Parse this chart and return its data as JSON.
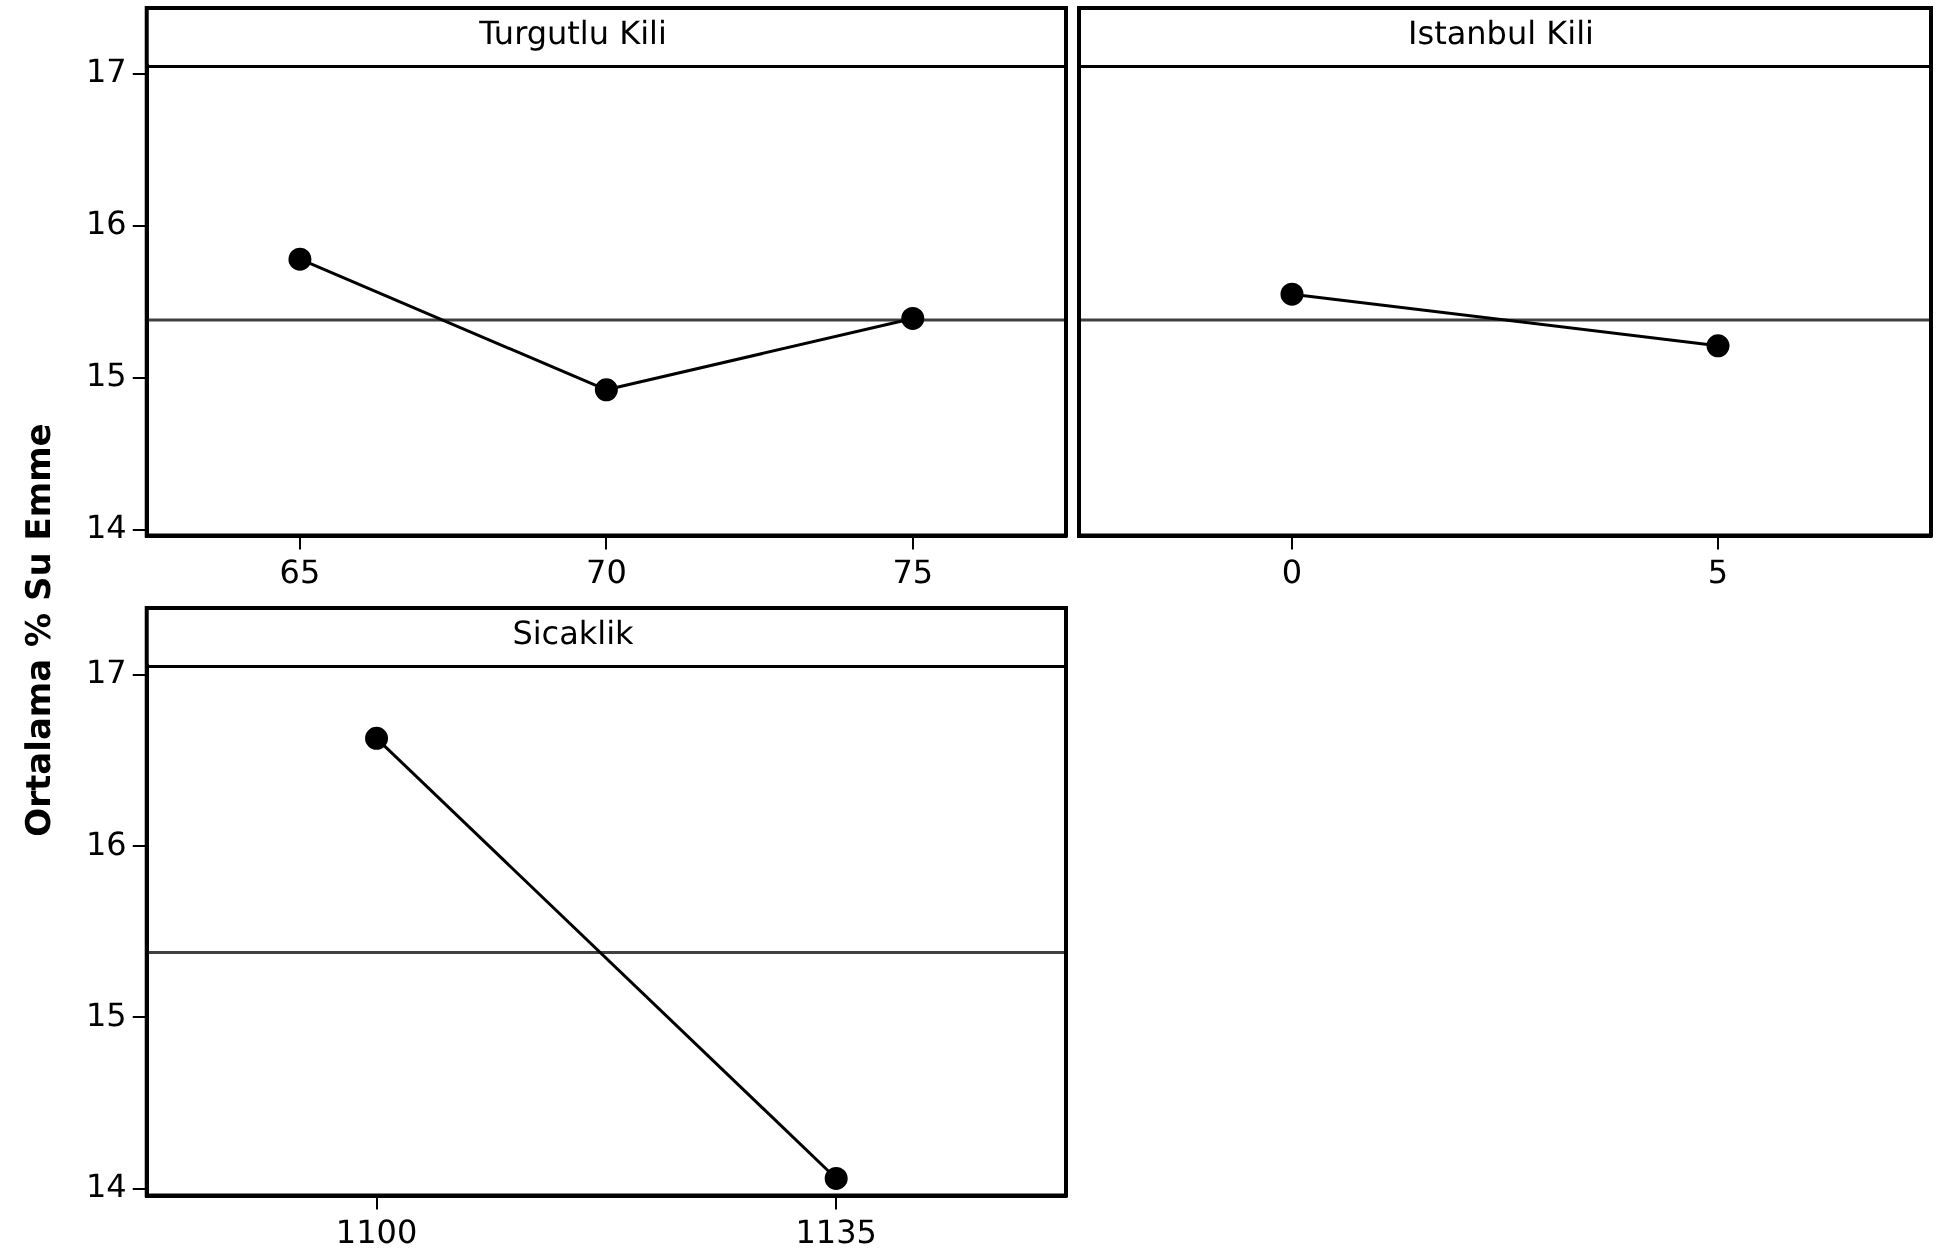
{
  "chart_data": [
    {
      "type": "line",
      "title": "Turgutlu Kili",
      "ylabel": "Ortalama % Su Emme",
      "x": [
        65,
        70,
        75
      ],
      "values": [
        15.78,
        14.92,
        15.39
      ],
      "color": "#000000",
      "marker": "circle",
      "line_style": "solid",
      "xlim": [
        62.5,
        77.5
      ],
      "xticks": [
        65,
        70,
        75
      ],
      "ylim": [
        13.96,
        17.05
      ],
      "yticks": [
        14,
        15,
        16,
        17
      ],
      "ref_lines": [
        {
          "axis": "y",
          "value": 15.38,
          "color": "#404040"
        }
      ]
    },
    {
      "type": "line",
      "title": "Istanbul Kili",
      "x": [
        0,
        5
      ],
      "values": [
        15.55,
        15.21
      ],
      "color": "#000000",
      "marker": "circle",
      "line_style": "solid",
      "xlim": [
        -2.5,
        7.5
      ],
      "xticks": [
        0,
        5
      ],
      "ylim": [
        13.96,
        17.05
      ],
      "yticks": [
        14,
        15,
        16,
        17
      ],
      "tick_labels": "x",
      "ref_lines": [
        {
          "axis": "y",
          "value": 15.38,
          "color": "#404040"
        }
      ]
    },
    {
      "type": "line",
      "title": "Sicaklik",
      "x": [
        1100,
        1135
      ],
      "values": [
        16.63,
        14.06
      ],
      "color": "#000000",
      "marker": "circle",
      "line_style": "solid",
      "xlim": [
        1082.5,
        1152.5
      ],
      "xticks": [
        1100,
        1135
      ],
      "ylim": [
        13.96,
        17.05
      ],
      "yticks": [
        14,
        15,
        16,
        17
      ],
      "ref_lines": [
        {
          "axis": "y",
          "value": 15.38,
          "color": "#404040"
        }
      ]
    }
  ]
}
